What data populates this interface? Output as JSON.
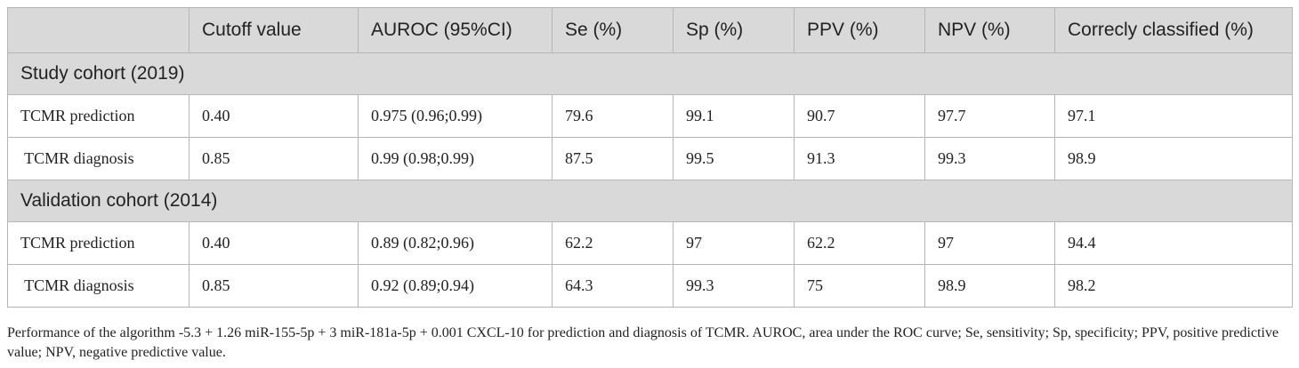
{
  "table": {
    "headers": [
      "",
      "Cutoff value",
      "AUROC (95%CI)",
      "Se (%)",
      "Sp (%)",
      "PPV (%)",
      "NPV (%)",
      "Correcly classified (%)"
    ],
    "sections": [
      {
        "title": "Study cohort (2019)",
        "rows": [
          [
            "TCMR prediction",
            "0.40",
            "0.975 (0.96;0.99)",
            "79.6",
            "99.1",
            "90.7",
            "97.7",
            "97.1"
          ],
          [
            " TCMR diagnosis",
            "0.85",
            "0.99 (0.98;0.99)",
            "87.5",
            "99.5",
            "91.3",
            "99.3",
            "98.9"
          ]
        ]
      },
      {
        "title": "Validation cohort (2014)",
        "rows": [
          [
            "TCMR prediction",
            "0.40",
            "0.89 (0.82;0.96)",
            "62.2",
            "97",
            "62.2",
            "97",
            "94.4"
          ],
          [
            " TCMR diagnosis",
            "0.85",
            "0.92 (0.89;0.94)",
            "64.3",
            "99.3",
            "75",
            "98.9",
            "98.2"
          ]
        ]
      }
    ]
  },
  "caption": "Performance of the algorithm -5.3 + 1.26 miR-155-5p + 3 miR-181a-5p + 0.001 CXCL-10 for prediction and diagnosis of TCMR. AUROC, area under the ROC curve; Se, sensitivity; Sp, specificity; PPV, positive predictive value; NPV, negative predictive value."
}
